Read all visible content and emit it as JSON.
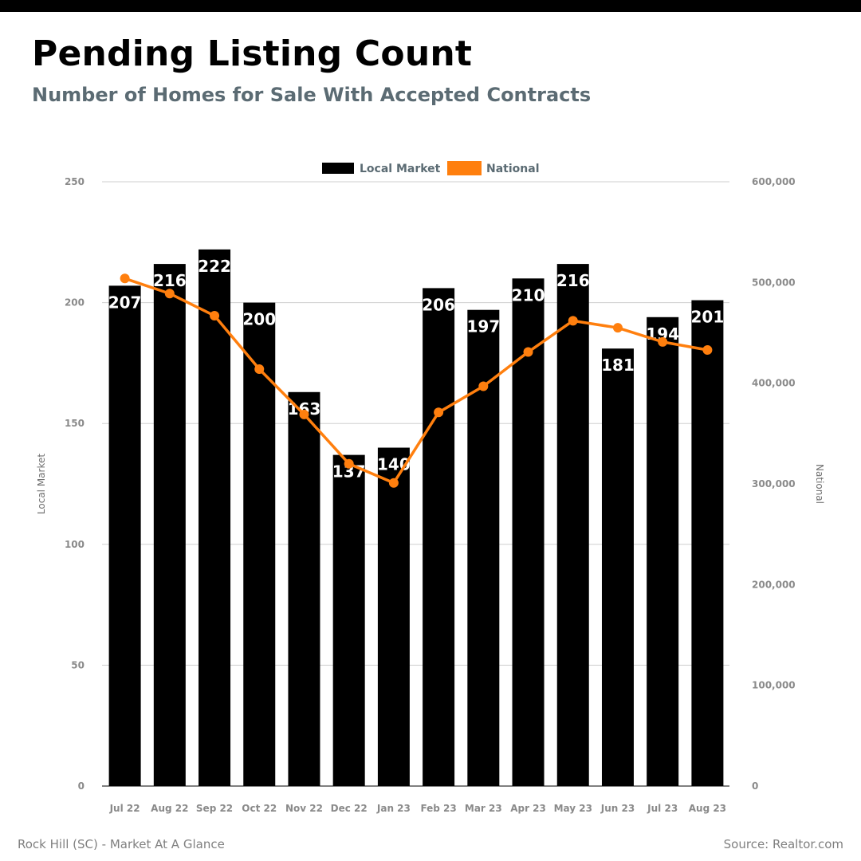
{
  "header": {
    "title": "Pending Listing Count",
    "subtitle": "Number of Homes for Sale With Accepted Contracts"
  },
  "footer": {
    "left": "Rock Hill (SC) - Market At A Glance",
    "right": "Source: Realtor.com"
  },
  "colors": {
    "top_bar": "#000000",
    "subtitle": "#5b6b73",
    "bars": "#000000",
    "line": "#ff7f0e",
    "legend_text": "#5b6b73",
    "grid": "#cfcfcf"
  },
  "chart_data": {
    "type": "bar",
    "categories": [
      "Jul 22",
      "Aug 22",
      "Sep 22",
      "Oct 22",
      "Nov 22",
      "Dec 22",
      "Jan 23",
      "Feb 23",
      "Mar 23",
      "Apr 23",
      "May 23",
      "Jun 23",
      "Jul 23",
      "Aug 23"
    ],
    "series": [
      {
        "name": "Local Market",
        "type": "bar",
        "axis": "left",
        "values": [
          207,
          216,
          222,
          200,
          163,
          137,
          140,
          206,
          197,
          210,
          216,
          181,
          194,
          201
        ]
      },
      {
        "name": "National",
        "type": "line",
        "axis": "right",
        "values": [
          504000,
          489000,
          467000,
          414000,
          369000,
          320000,
          301000,
          371000,
          397000,
          431000,
          462000,
          455000,
          441000,
          433000
        ]
      }
    ],
    "ylabel": "Local Market",
    "ylabel_right": "National",
    "ylim": [
      0,
      250
    ],
    "ylim_right": [
      0,
      600000
    ],
    "yticks": [
      "0",
      "50",
      "100",
      "150",
      "200",
      "250"
    ],
    "yticks_right": [
      "0",
      "100,000",
      "200,000",
      "300,000",
      "400,000",
      "500,000",
      "600,000"
    ],
    "grid": true,
    "legend_position": "top-center",
    "data_labels": [
      "207",
      "216",
      "222",
      "200",
      "163",
      "137",
      "140",
      "206",
      "197",
      "210",
      "216",
      "181",
      "194",
      "201"
    ]
  }
}
